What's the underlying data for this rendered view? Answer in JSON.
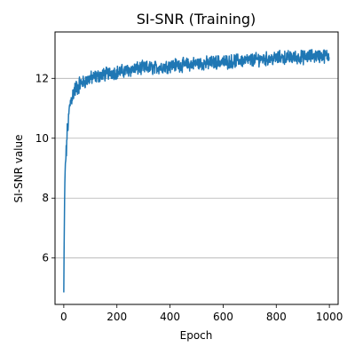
{
  "chart_data": {
    "type": "line",
    "title": "SI-SNR (Training)",
    "xlabel": "Epoch",
    "ylabel": "SI-SNR value",
    "xlim": [
      -33,
      1033
    ],
    "ylim": [
      4.45,
      13.55
    ],
    "xticks": [
      0,
      200,
      400,
      600,
      800,
      1000
    ],
    "yticks": [
      6,
      8,
      10,
      12
    ],
    "grid": "y-major",
    "color": "#1f77b4",
    "series": [
      {
        "x": [
          0,
          1,
          2,
          3,
          4,
          6,
          8,
          10,
          12,
          15,
          18,
          20,
          25,
          30,
          35,
          40,
          50,
          60,
          70,
          80,
          90,
          100,
          120,
          140,
          160,
          180,
          200,
          230,
          260,
          300,
          340,
          380,
          420,
          460,
          500,
          540,
          580,
          620,
          660,
          700,
          740,
          780,
          820,
          860,
          900,
          940,
          980,
          1000
        ],
        "y": [
          4.85,
          6.1,
          7.0,
          7.9,
          8.5,
          9.1,
          9.4,
          9.6,
          10.1,
          10.4,
          10.6,
          10.9,
          11.2,
          11.35,
          11.5,
          11.6,
          11.7,
          11.8,
          11.85,
          11.9,
          11.95,
          12.0,
          12.05,
          12.1,
          12.15,
          12.2,
          12.2,
          12.25,
          12.3,
          12.35,
          12.35,
          12.4,
          12.45,
          12.45,
          12.5,
          12.5,
          12.55,
          12.55,
          12.6,
          12.6,
          12.65,
          12.65,
          12.7,
          12.7,
          12.7,
          12.75,
          12.75,
          12.75
        ],
        "noise": 0.18
      }
    ]
  }
}
